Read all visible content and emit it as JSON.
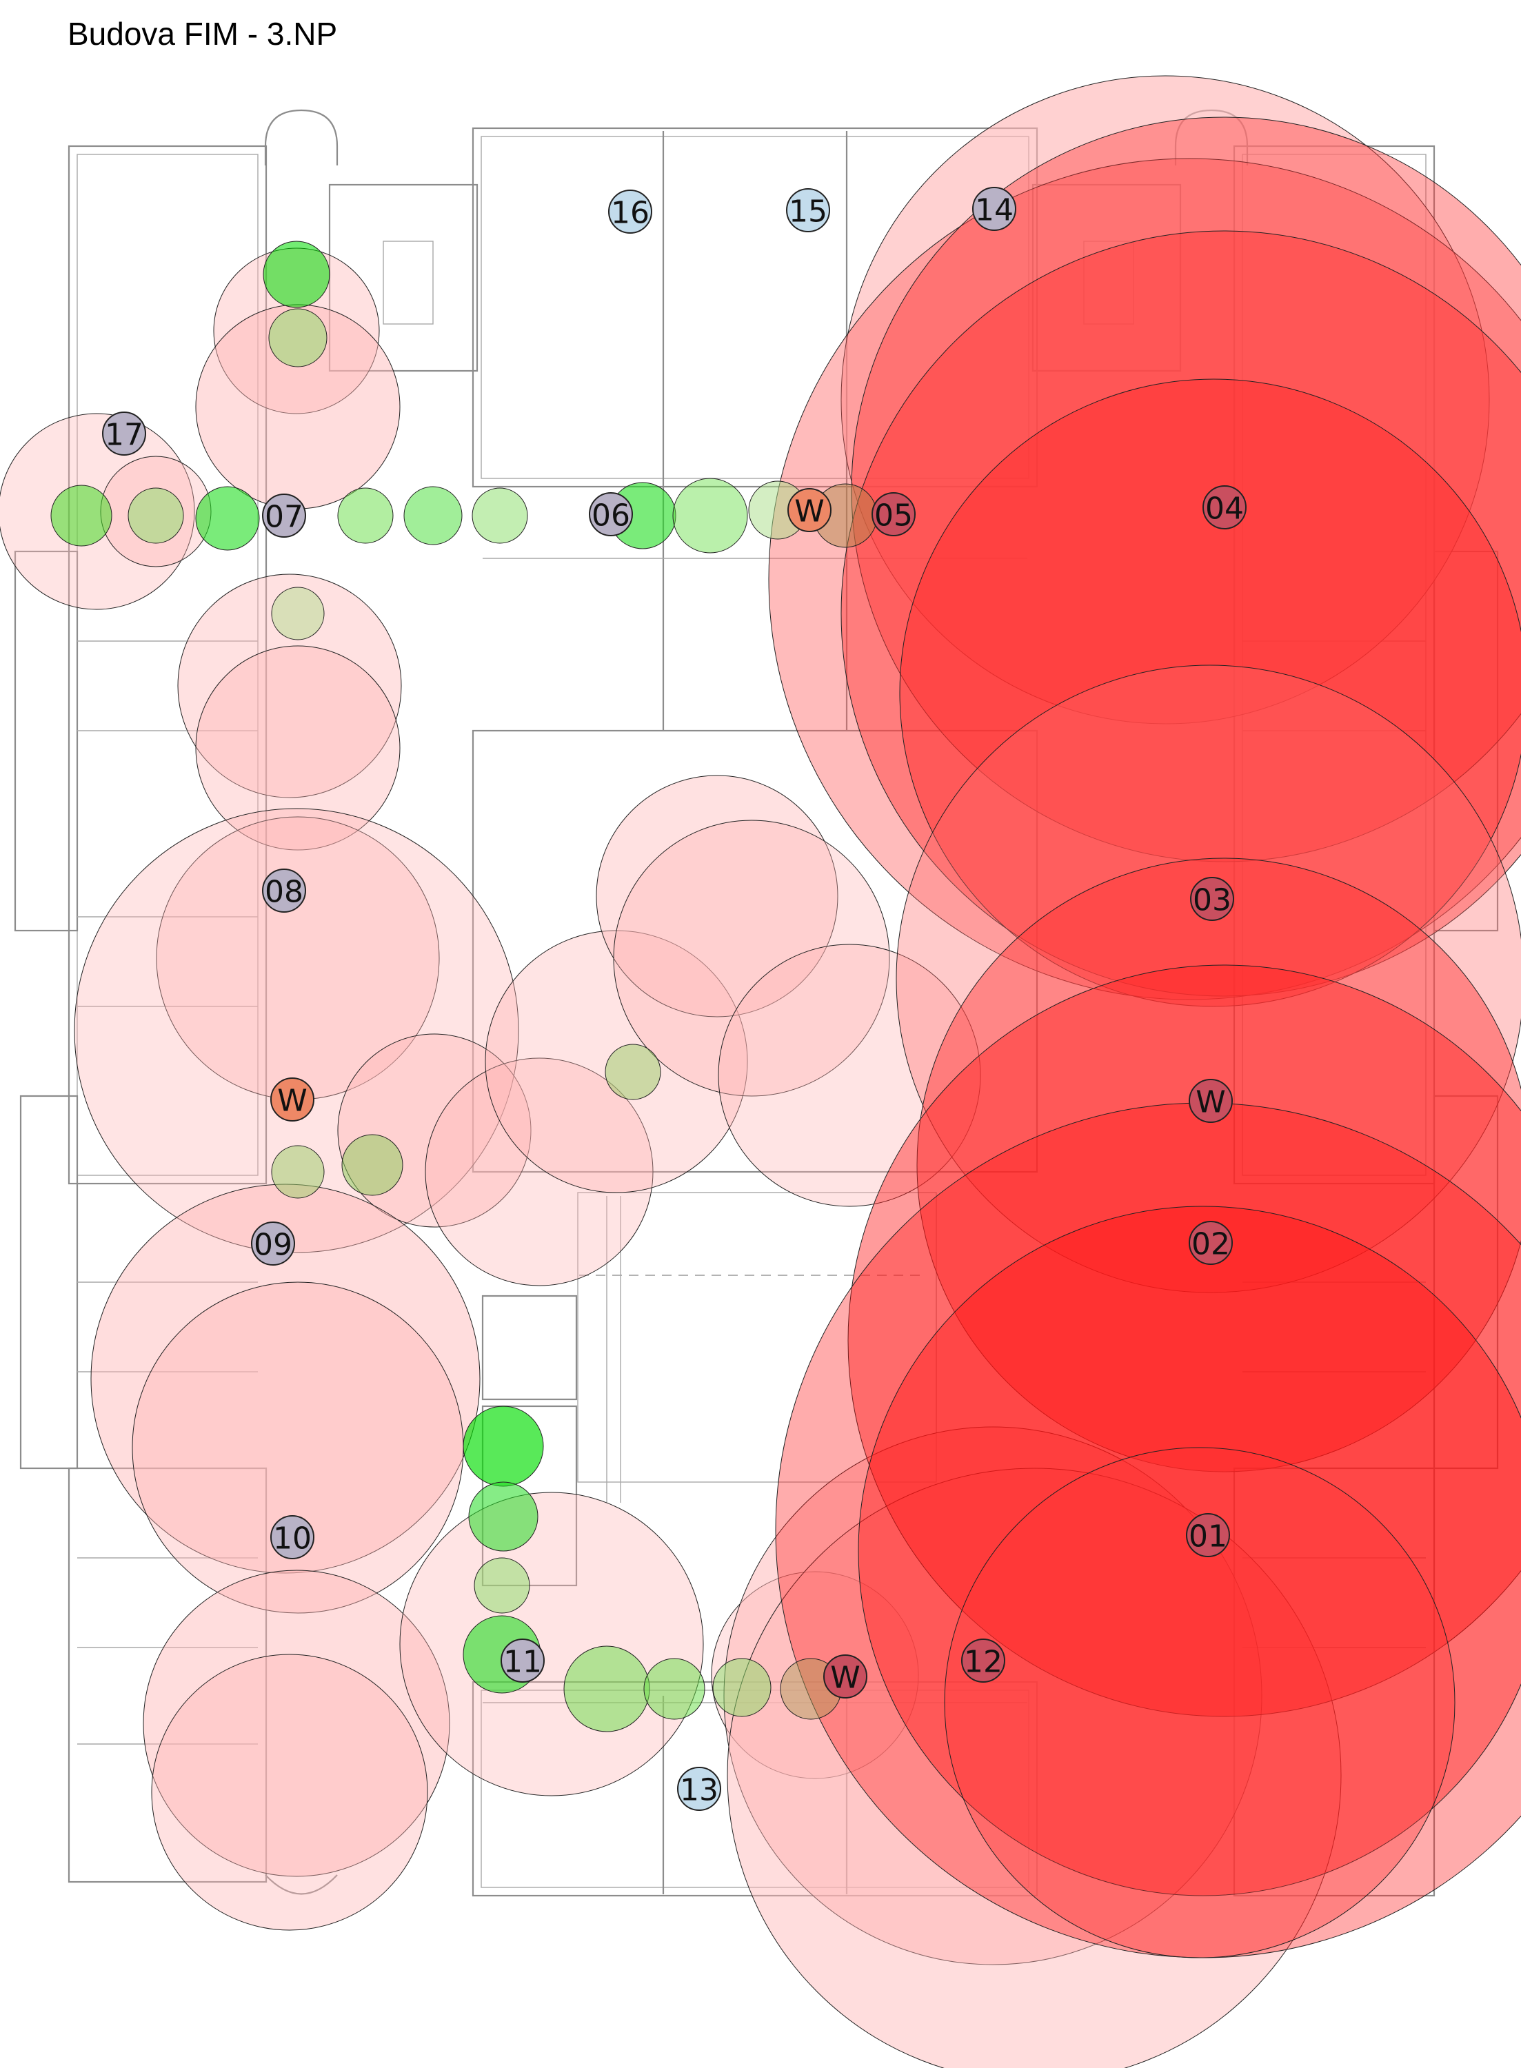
{
  "title": "Budova FIM - 3.NP",
  "colors": {
    "strong": "#ff0000",
    "medium": "#ff6666",
    "weak": "#ffb3b3",
    "good": "#00dd00",
    "fair": "#88dd66",
    "marker_blue": "#c3dcec",
    "marker_grey": "#b8b2c6",
    "marker_red": "#c94f5f",
    "marker_orange": "#ee8866",
    "plan_line": "#8c8c8c"
  },
  "markers": [
    {
      "label": "16",
      "style": "marker_blue"
    },
    {
      "label": "15",
      "style": "marker_blue"
    },
    {
      "label": "14",
      "style": "marker_grey"
    },
    {
      "label": "17",
      "style": "marker_grey"
    },
    {
      "label": "07",
      "style": "marker_grey"
    },
    {
      "label": "06",
      "style": "marker_grey"
    },
    {
      "label": "W",
      "style": "marker_orange"
    },
    {
      "label": "05",
      "style": "marker_red"
    },
    {
      "label": "04",
      "style": "marker_red"
    },
    {
      "label": "08",
      "style": "marker_grey"
    },
    {
      "label": "03",
      "style": "marker_red"
    },
    {
      "label": "W",
      "style": "marker_orange"
    },
    {
      "label": "W",
      "style": "marker_red"
    },
    {
      "label": "09",
      "style": "marker_grey"
    },
    {
      "label": "02",
      "style": "marker_red"
    },
    {
      "label": "10",
      "style": "marker_grey"
    },
    {
      "label": "01",
      "style": "marker_red"
    },
    {
      "label": "11",
      "style": "marker_grey"
    },
    {
      "label": "W",
      "style": "marker_red"
    },
    {
      "label": "12",
      "style": "marker_red"
    },
    {
      "label": "13",
      "style": "marker_blue"
    }
  ]
}
